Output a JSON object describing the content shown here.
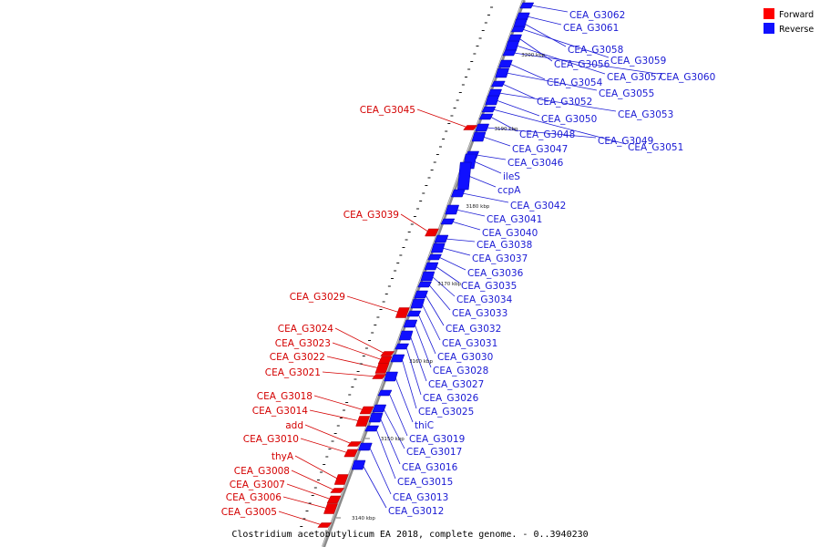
{
  "legend": {
    "forward": {
      "label": "Forward",
      "color": "#ff0000"
    },
    "reverse": {
      "label": "Reverse",
      "color": "#1010ff"
    }
  },
  "caption": "Clostridium acetobutylicum EA 2018, complete genome. - 0..3940230",
  "ticks": [
    "3140 kbp",
    "3150 kbp",
    "3160 kbp",
    "3170 kbp",
    "3180 kbp",
    "3190 kbp",
    "3200 kbp"
  ],
  "forward_genes": [
    "CEA_G3045",
    "CEA_G3039",
    "CEA_G3029",
    "CEA_G3024",
    "CEA_G3023",
    "CEA_G3022",
    "CEA_G3021",
    "CEA_G3018",
    "CEA_G3014",
    "add",
    "CEA_G3010",
    "thyA",
    "CEA_G3008",
    "CEA_G3007",
    "CEA_G3006",
    "CEA_G3005"
  ],
  "reverse_genes": [
    "CEA_G3062",
    "CEA_G3061",
    "CEA_G3058",
    "CEA_G3059",
    "CEA_G3056",
    "CEA_G3057",
    "CEA_G3060",
    "CEA_G3054",
    "CEA_G3055",
    "CEA_G3052",
    "CEA_G3053",
    "CEA_G3050",
    "CEA_G3048",
    "CEA_G3049",
    "CEA_G3047",
    "CEA_G3051",
    "CEA_G3046",
    "ileS",
    "ccpA",
    "CEA_G3042",
    "CEA_G3041",
    "CEA_G3040",
    "CEA_G3038",
    "CEA_G3037",
    "CEA_G3036",
    "CEA_G3035",
    "CEA_G3034",
    "CEA_G3033",
    "CEA_G3032",
    "CEA_G3031",
    "CEA_G3030",
    "CEA_G3028",
    "CEA_G3027",
    "CEA_G3026",
    "CEA_G3025",
    "thiC",
    "CEA_G3019",
    "CEA_G3017",
    "CEA_G3016",
    "CEA_G3015",
    "CEA_G3013",
    "CEA_G3012"
  ]
}
